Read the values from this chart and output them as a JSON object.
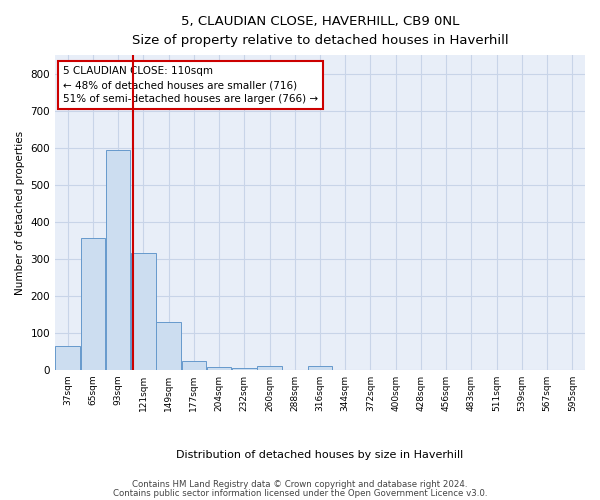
{
  "title": "5, CLAUDIAN CLOSE, HAVERHILL, CB9 0NL",
  "subtitle": "Size of property relative to detached houses in Haverhill",
  "xlabel": "Distribution of detached houses by size in Haverhill",
  "ylabel": "Number of detached properties",
  "footer_line1": "Contains HM Land Registry data © Crown copyright and database right 2024.",
  "footer_line2": "Contains public sector information licensed under the Open Government Licence v3.0.",
  "bin_labels": [
    "37sqm",
    "65sqm",
    "93sqm",
    "121sqm",
    "149sqm",
    "177sqm",
    "204sqm",
    "232sqm",
    "260sqm",
    "288sqm",
    "316sqm",
    "344sqm",
    "372sqm",
    "400sqm",
    "428sqm",
    "456sqm",
    "483sqm",
    "511sqm",
    "539sqm",
    "567sqm",
    "595sqm"
  ],
  "bar_values": [
    65,
    355,
    595,
    315,
    128,
    25,
    8,
    5,
    10,
    0,
    10,
    0,
    0,
    0,
    0,
    0,
    0,
    0,
    0,
    0,
    0
  ],
  "bar_color": "#ccddf0",
  "bar_edge_color": "#6699cc",
  "property_label": "5 CLAUDIAN CLOSE: 110sqm",
  "annotation_line1": "← 48% of detached houses are smaller (716)",
  "annotation_line2": "51% of semi-detached houses are larger (766) →",
  "vline_color": "#cc0000",
  "annotation_box_color": "#cc0000",
  "ylim": [
    0,
    850
  ],
  "yticks": [
    0,
    100,
    200,
    300,
    400,
    500,
    600,
    700,
    800
  ],
  "background_color": "#ffffff",
  "plot_bg_color": "#e8eef8",
  "grid_color": "#c8d4e8"
}
